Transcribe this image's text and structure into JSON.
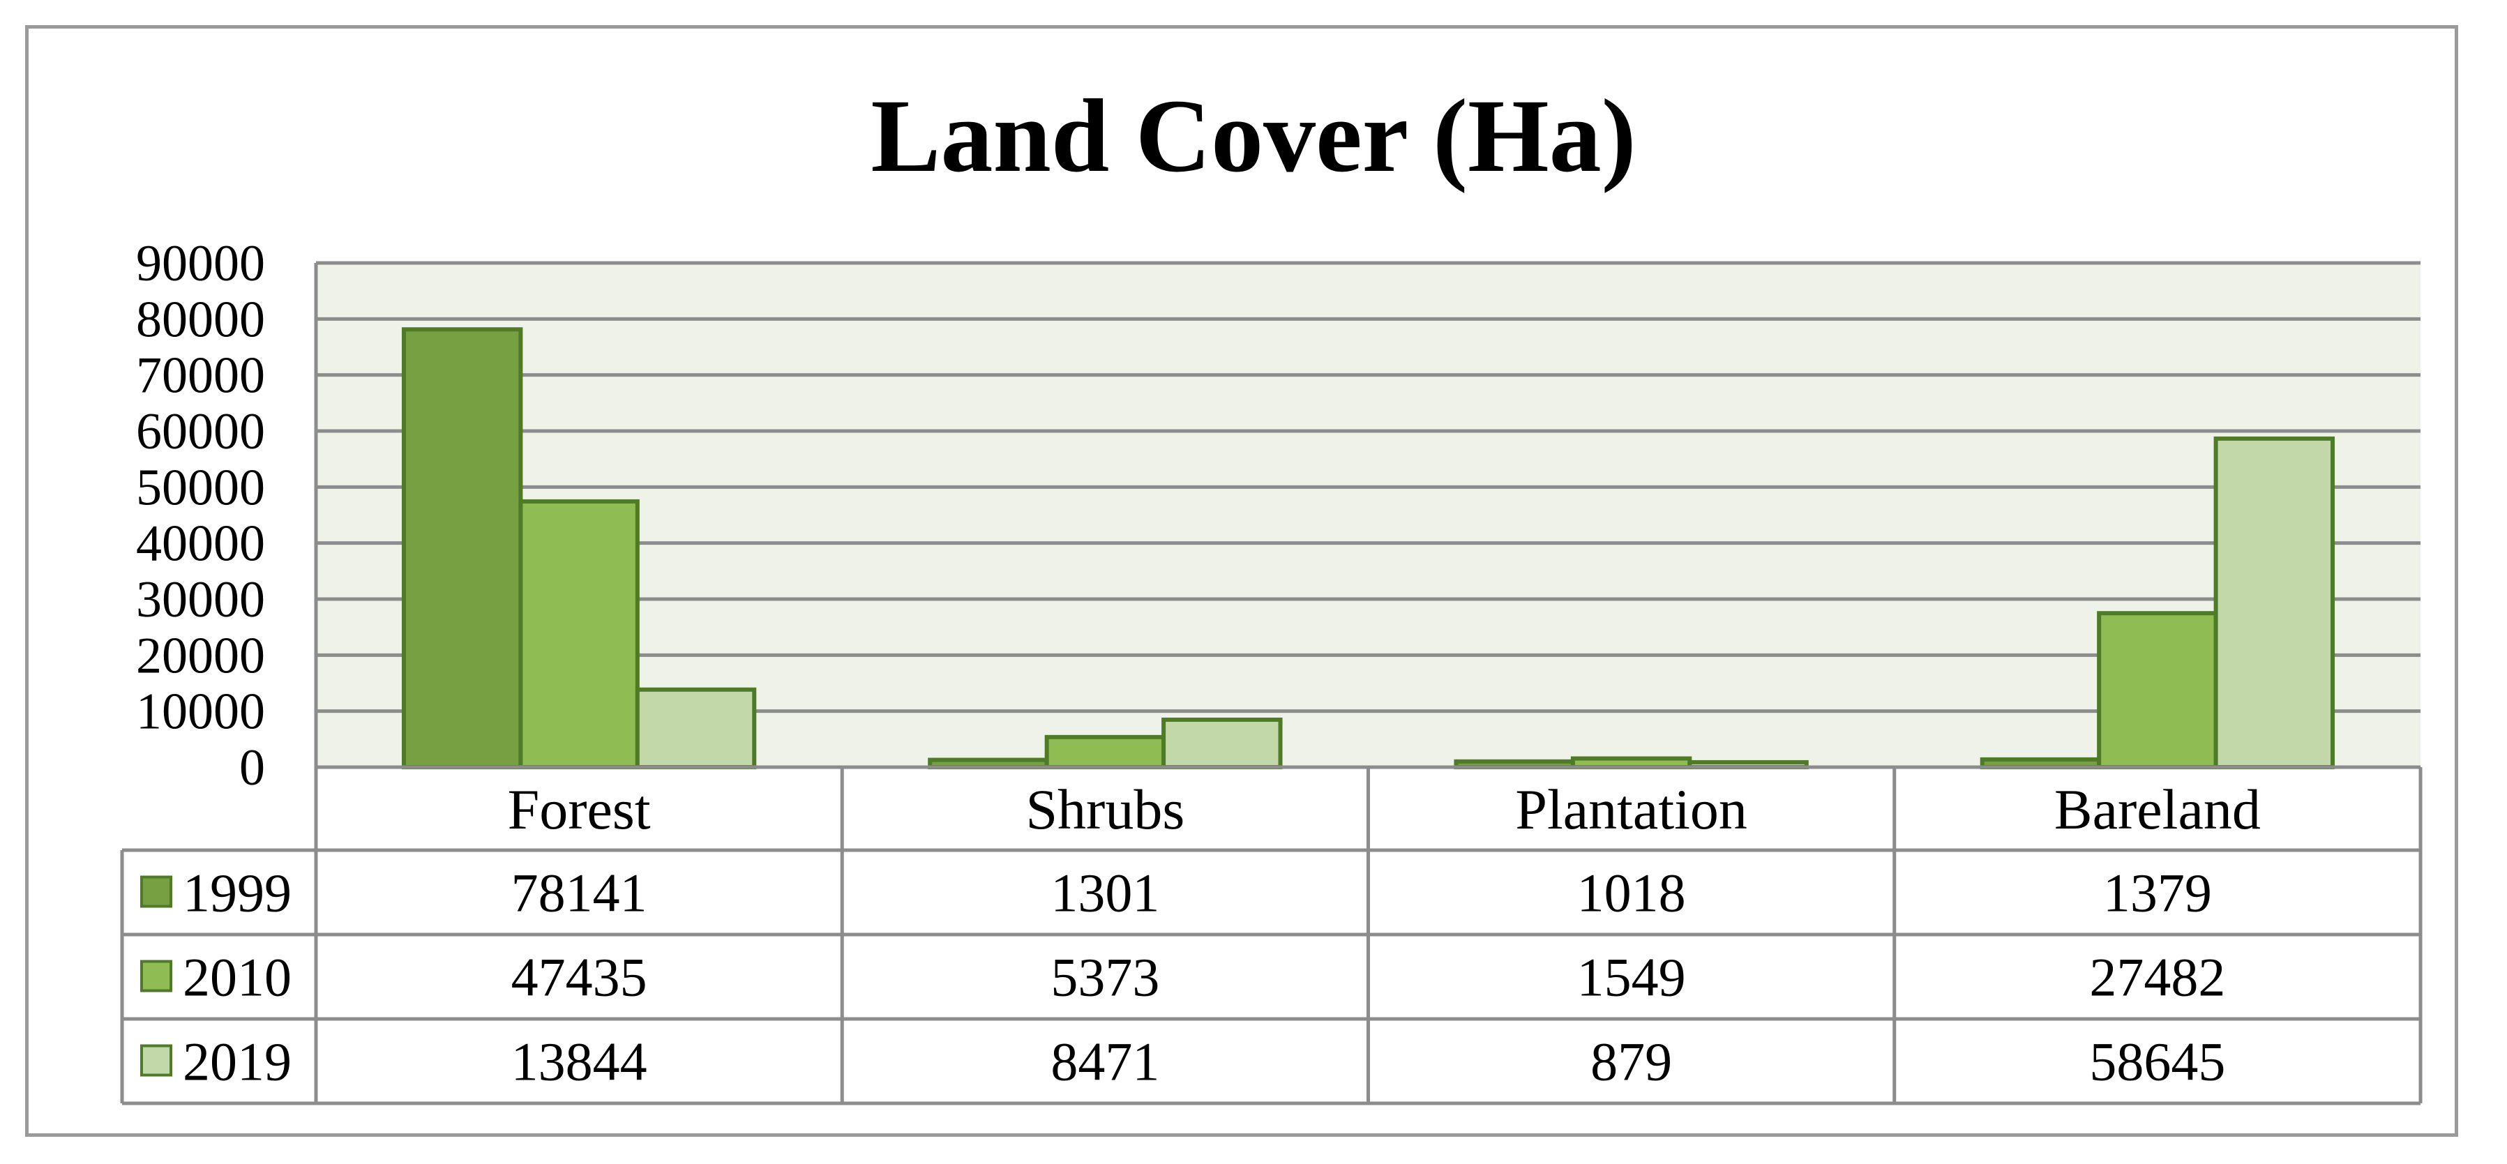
{
  "chart_data": {
    "type": "bar",
    "title": "Land Cover (Ha)",
    "categories": [
      "Forest",
      "Shrubs",
      "Plantation",
      "Bareland"
    ],
    "series": [
      {
        "name": "1999",
        "values": [
          78141,
          1301,
          1018,
          1379
        ],
        "color": "#77A043"
      },
      {
        "name": "2010",
        "values": [
          47435,
          5373,
          1549,
          27482
        ],
        "color": "#8FBD54"
      },
      {
        "name": "2019",
        "values": [
          13844,
          8471,
          879,
          58645
        ],
        "color": "#C2D8A9"
      }
    ],
    "ylim": [
      0,
      90000
    ],
    "yticks": [
      "0",
      "10000",
      "20000",
      "30000",
      "40000",
      "50000",
      "60000",
      "70000",
      "80000",
      "90000"
    ],
    "grid": true,
    "legend": "data-table-left",
    "plot_background": "#EEF2E8",
    "bar_border_color": "#4F7A28",
    "table": {
      "rows": [
        {
          "label": "1999",
          "cells": [
            "78141",
            "1301",
            "1018",
            "1379"
          ]
        },
        {
          "label": "2010",
          "cells": [
            "47435",
            "5373",
            "1549",
            "27482"
          ]
        },
        {
          "label": "2019",
          "cells": [
            "13844",
            "8471",
            "879",
            "58645"
          ]
        }
      ]
    }
  }
}
